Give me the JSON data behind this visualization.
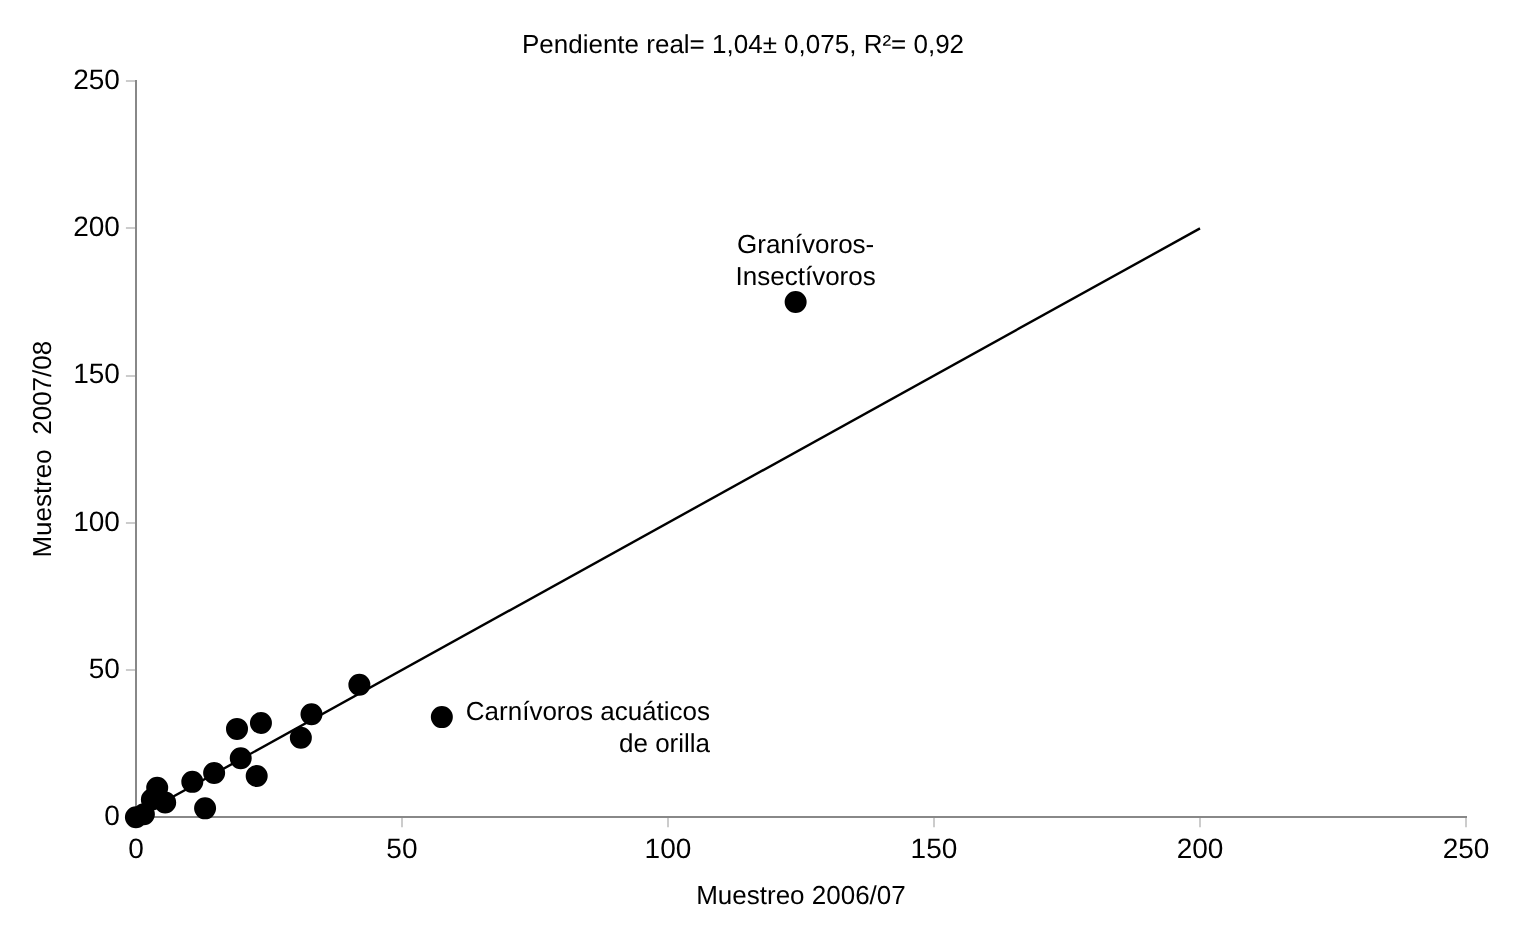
{
  "chart_data": {
    "type": "scatter",
    "title": "Pendiente real= 1,04± 0,075, R²= 0,92",
    "xlabel": "Muestreo 2006/07",
    "ylabel": "Muestreo  2007/08",
    "xlim": [
      0,
      250
    ],
    "xticks": [
      0,
      50,
      100,
      150,
      200,
      250
    ],
    "ylim": [
      0,
      250
    ],
    "yticks": [
      0,
      50,
      100,
      150,
      200,
      250
    ],
    "grid": false,
    "legend": false,
    "marker": "circle",
    "series": [
      {
        "color": "#000000",
        "x": [
          0,
          1.5,
          3,
          4,
          5.5,
          10.6,
          13,
          14.7,
          19,
          19.7,
          22.7,
          23.5,
          31,
          33,
          42,
          57.5,
          124
        ],
        "values": [
          0,
          1,
          6,
          10,
          5,
          12,
          3,
          15,
          30,
          20,
          14,
          32,
          27,
          35,
          45,
          34,
          175
        ]
      },
      {
        "type": "line",
        "color": "#000000",
        "marker": "none",
        "x": [
          0,
          200
        ],
        "values": [
          0,
          200
        ]
      }
    ],
    "annotations": [
      {
        "text": "Granívoros-\nInsectívoros",
        "x": 124,
        "y": 175
      },
      {
        "text": "Carnívoros acuáticos\nde orilla",
        "x": 57.5,
        "y": 34
      }
    ]
  }
}
